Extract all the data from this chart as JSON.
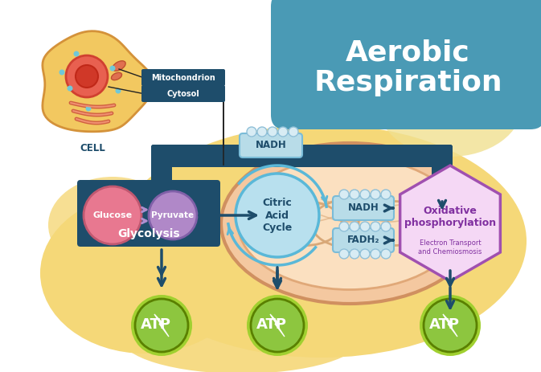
{
  "title_line1": "Aerobic",
  "title_line2": "Respiration",
  "title_bg": "#4a9ab5",
  "title_color": "white",
  "bg_color": "#ffffff",
  "blob_color": "#f5d878",
  "blob_color2": "#f0e090",
  "cell_fill": "#f2c860",
  "cell_border": "#d4923a",
  "cell_inner_fill": "#f5a070",
  "nucleus_fill": "#e85a3a",
  "nucleus_inner": "#c83020",
  "mito_outer_fill": "#f4c8a0",
  "mito_outer_edge": "#d09060",
  "mito_inner_fill": "#fbe0c0",
  "mito_inner_edge": "#e0a878",
  "crista_edge": "#d8a878",
  "glycolysis_label": "Glycolysis",
  "glucose_label": "Glucose",
  "pyruvate_label": "Pyruvate",
  "citric_label": "Citric\nAcid\nCycle",
  "nadh_top_label": "NADH",
  "nadh_mid_label": "NADH",
  "fadh2_label": "FADH₂",
  "oxphos_label": "Oxidative\nphosphorylation",
  "oxphos_sub": "Electron Transport\nand Chemiosmosis",
  "mito_label": "Mitochondrion",
  "cytosol_label": "Cytosol",
  "cell_label": "CELL",
  "atp_label": "ATP",
  "dark_teal": "#1e4d6b",
  "arrow_color": "#1e4d6b",
  "glucose_color": "#e87890",
  "pyruvate_color": "#b088c8",
  "citric_fill": "#b8e0ee",
  "citric_edge": "#5ab8d8",
  "nadh_box_fill": "#b8dce8",
  "nadh_box_edge": "#7abcd8",
  "bump_fill": "#d8ecf4",
  "bump_edge": "#90c0d8",
  "oxphos_fill": "#f5d8f5",
  "oxphos_edge": "#a050b0",
  "oxphos_text": "#8030a0",
  "atp_green": "#8dc63f",
  "atp_dark_green": "#5a8000",
  "atp_text": "white",
  "label_box_color": "#1e4d6b"
}
